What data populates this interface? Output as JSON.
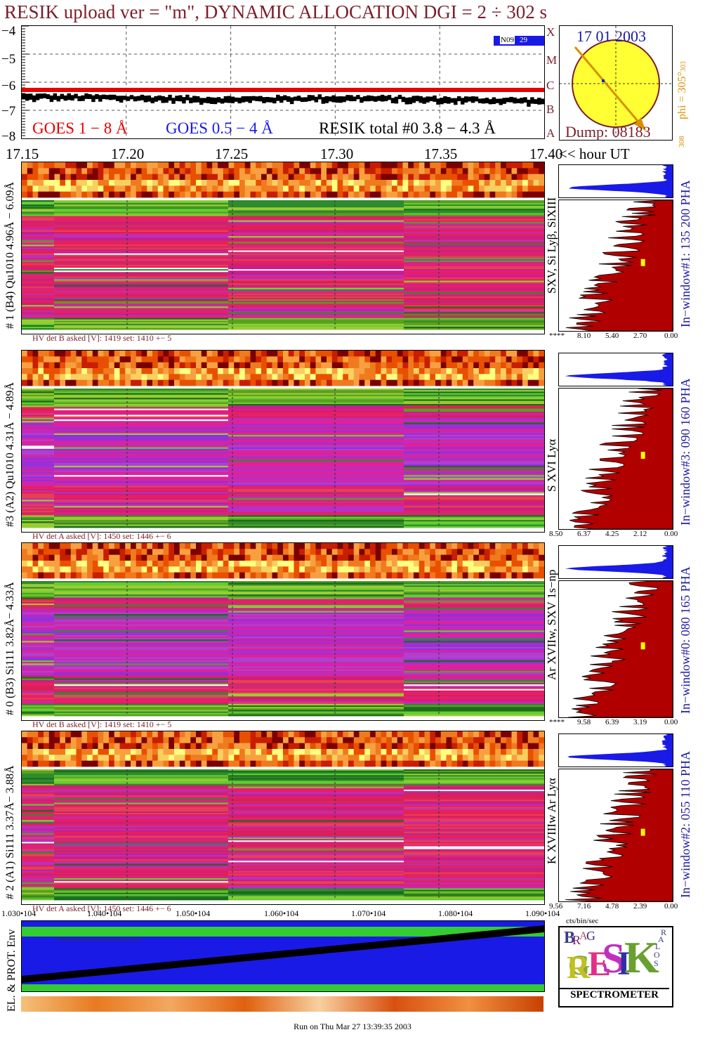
{
  "header": {
    "title": "RESIK upload ver = \"m\",  DYNAMIC ALLOCATION  DGI =   2 ÷ 302 s"
  },
  "goes": {
    "yticks": [
      "−4",
      "−5",
      "−6",
      "−7",
      "−8"
    ],
    "legend_goes18": "GOES 1 − 8 Å",
    "legend_goes054": "GOES 0.5 − 4 Å",
    "legend_resik": "RESIK total #0  3.8 − 4.3 Å",
    "flare_classes": [
      "A",
      "B",
      "C",
      "M",
      "X"
    ],
    "badge_label": "N09",
    "badge_value": "29",
    "colors": {
      "goes18": "#e60000",
      "goes054": "#1a1ae6",
      "resik": "#000000"
    }
  },
  "sun": {
    "date": "17 01 2003",
    "dump": "Dump: 08183",
    "phi": "phi = 305°",
    "phi_sup": "303",
    "phi_bottom": "308"
  },
  "time_axis": {
    "labels": [
      "17.15",
      "17.20",
      "17.25",
      "17.30",
      "17.35",
      "17.40"
    ],
    "suffix": "<< hour UT"
  },
  "panels": [
    {
      "left_label": "# 1 (B4) Qu1010  4.96Å − 6.09Å",
      "right_label": "SXV, Si Lyβ, SiXIII",
      "window_label": "In−window#1:  135 200 PHA",
      "hv": "HV det B asked [V]:  1419 set:  1410 +−   5",
      "pha_ticks": [
        "****",
        "8.10",
        "5.40",
        "2.70",
        "0.00"
      ]
    },
    {
      "left_label": "#3 (A2) Qu1010  4.31Å − 4.89Å",
      "right_label": "S XVI Lyα",
      "window_label": "In−window#3:  090 160 PHA",
      "hv": "HV det A asked [V]:  1450 set:  1446 +−   6",
      "pha_ticks": [
        "8.50",
        "6.37",
        "4.25",
        "2.12",
        "0.00"
      ]
    },
    {
      "left_label": "# 0 (B3) Si111  3.82Å− 4.33Å",
      "right_label": "Ar XVIIw,  SXV 1s−np",
      "window_label": "In−window#0:  080 165 PHA",
      "hv": "HV det B asked [V]:  1419 set:  1410 +−   5",
      "pha_ticks": [
        "****",
        "9.58",
        "6.39",
        "3.19",
        "0.00"
      ]
    },
    {
      "left_label": "# 2 (A1) Si111  3.37Å− 3.88Å",
      "right_label": "K XVIIIw  Ar Lyα",
      "window_label": "In−window#2:  055 110 PHA",
      "hv": "HV det A asked [V]:  1450 set:  1446 +−   6",
      "pha_ticks": [
        "9.56",
        "7.16",
        "4.78",
        "2.39",
        "0.00"
      ]
    }
  ],
  "pha_unit": "cts/bin/sec",
  "bottom_axis": {
    "labels": [
      "1.030•104",
      "1.040•104",
      "1.050•104",
      "1.060•104",
      "1.070•104",
      "1.080•104",
      "1.090•104"
    ]
  },
  "env_label": "EL. & PROT. Env",
  "logo": {
    "title": "SPECTROMETER",
    "letters": [
      "B",
      "R",
      "A",
      "G",
      "G",
      "R",
      "E",
      "S",
      "I",
      "K",
      "S",
      "O",
      "L",
      "A",
      "R"
    ]
  },
  "footer": "Run on Thu Mar 27 13:39:35 2003",
  "chart_data": {
    "type": "line",
    "title": "RESIK upload ver = \"m\",  DYNAMIC ALLOCATION  DGI =   2 ÷ 302 s",
    "x": [
      "17.15",
      "17.20",
      "17.25",
      "17.30",
      "17.35",
      "17.40"
    ],
    "xlabel": "hour UT",
    "ylabel": "",
    "ylim": [
      -8,
      -4
    ],
    "series": [
      {
        "name": "GOES 1 − 8 Å",
        "values": [
          -6.3,
          -6.3,
          -6.3,
          -6.3,
          -6.3,
          -6.3
        ]
      },
      {
        "name": "RESIK total #0  3.8 − 4.3 Å",
        "values": [
          -6.5,
          -6.55,
          -6.6,
          -6.55,
          -6.6,
          -6.65
        ]
      }
    ],
    "grid": true
  }
}
